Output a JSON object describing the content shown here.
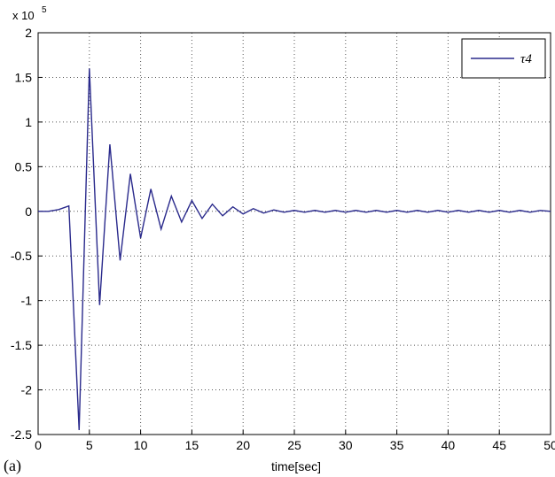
{
  "panel_label": "(a)",
  "chart_data": {
    "type": "line",
    "title": "",
    "xlabel": "time[sec]",
    "ylabel": "",
    "y_multiplier": {
      "base": "x 10",
      "exponent": "5"
    },
    "xlim": [
      0,
      50
    ],
    "ylim": [
      -2.5,
      2
    ],
    "x_ticks": [
      0,
      5,
      10,
      15,
      20,
      25,
      30,
      35,
      40,
      45,
      50
    ],
    "y_ticks": [
      2,
      1.5,
      1,
      0.5,
      0,
      -0.5,
      -1,
      -1.5,
      -2,
      -2.5
    ],
    "grid": true,
    "legend_position": "top-right",
    "colors": {
      "series": "#2a2a8c",
      "grid": "#555555",
      "axes": "#000000"
    },
    "series": [
      {
        "name": "τ4",
        "x": [
          0,
          1,
          2,
          3,
          4,
          5,
          6,
          7,
          8,
          9,
          10,
          11,
          12,
          13,
          14,
          15,
          16,
          17,
          18,
          19,
          20,
          21,
          22,
          23,
          24,
          25,
          26,
          27,
          28,
          29,
          30,
          31,
          32,
          33,
          34,
          35,
          36,
          37,
          38,
          39,
          40,
          41,
          42,
          43,
          44,
          45,
          46,
          47,
          48,
          49,
          50
        ],
        "y": [
          0,
          0,
          0.02,
          0.06,
          -2.45,
          1.6,
          -1.05,
          0.75,
          -0.55,
          0.42,
          -0.3,
          0.25,
          -0.2,
          0.17,
          -0.12,
          0.12,
          -0.08,
          0.08,
          -0.05,
          0.05,
          -0.03,
          0.03,
          -0.02,
          0.015,
          -0.01,
          0.01,
          -0.01,
          0.01,
          -0.01,
          0.01,
          -0.01,
          0.01,
          -0.01,
          0.01,
          -0.01,
          0.01,
          -0.01,
          0.01,
          -0.01,
          0.01,
          -0.01,
          0.01,
          -0.01,
          0.01,
          -0.01,
          0.01,
          -0.01,
          0.01,
          -0.01,
          0.01,
          0
        ]
      }
    ]
  }
}
